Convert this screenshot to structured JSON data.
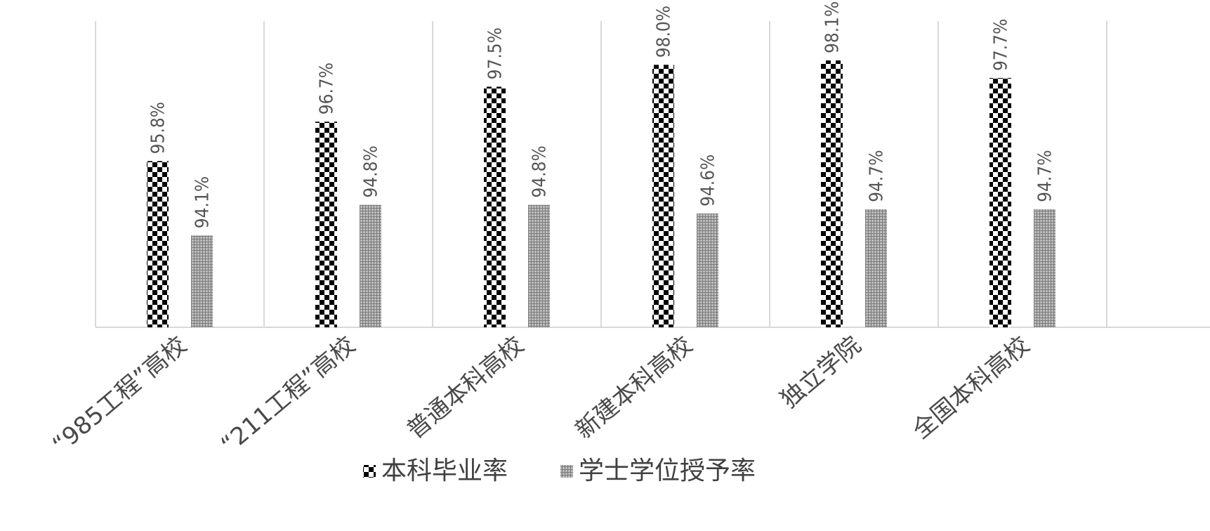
{
  "chart_data": {
    "type": "bar",
    "categories": [
      "“985工程”高校",
      "“211工程”高校",
      "普通本科高校",
      "新建本科高校",
      "独立学院",
      "全国本科高校"
    ],
    "series": [
      {
        "name": "本科毕业率",
        "values": [
          95.8,
          96.7,
          97.5,
          98.0,
          98.1,
          97.7
        ],
        "labels": [
          "95.8%",
          "96.7%",
          "97.5%",
          "98.0%",
          "98.1%",
          "97.7%"
        ],
        "pattern": "checker"
      },
      {
        "name": "学士学位授予率",
        "values": [
          94.1,
          94.8,
          94.8,
          94.6,
          94.7,
          94.7
        ],
        "labels": [
          "94.1%",
          "94.8%",
          "94.8%",
          "94.6%",
          "94.7%",
          "94.7%"
        ],
        "pattern": "grid"
      }
    ],
    "ylim": [
      92,
      99
    ],
    "grid": "vertical-category-separators",
    "legend": "bottom",
    "title": "",
    "xlabel": "",
    "ylabel": "",
    "colors": {
      "axis": "#d9d9d9",
      "bar_dark": "#000000",
      "bar_light": "#8c8c8c",
      "text": "#555555"
    }
  }
}
